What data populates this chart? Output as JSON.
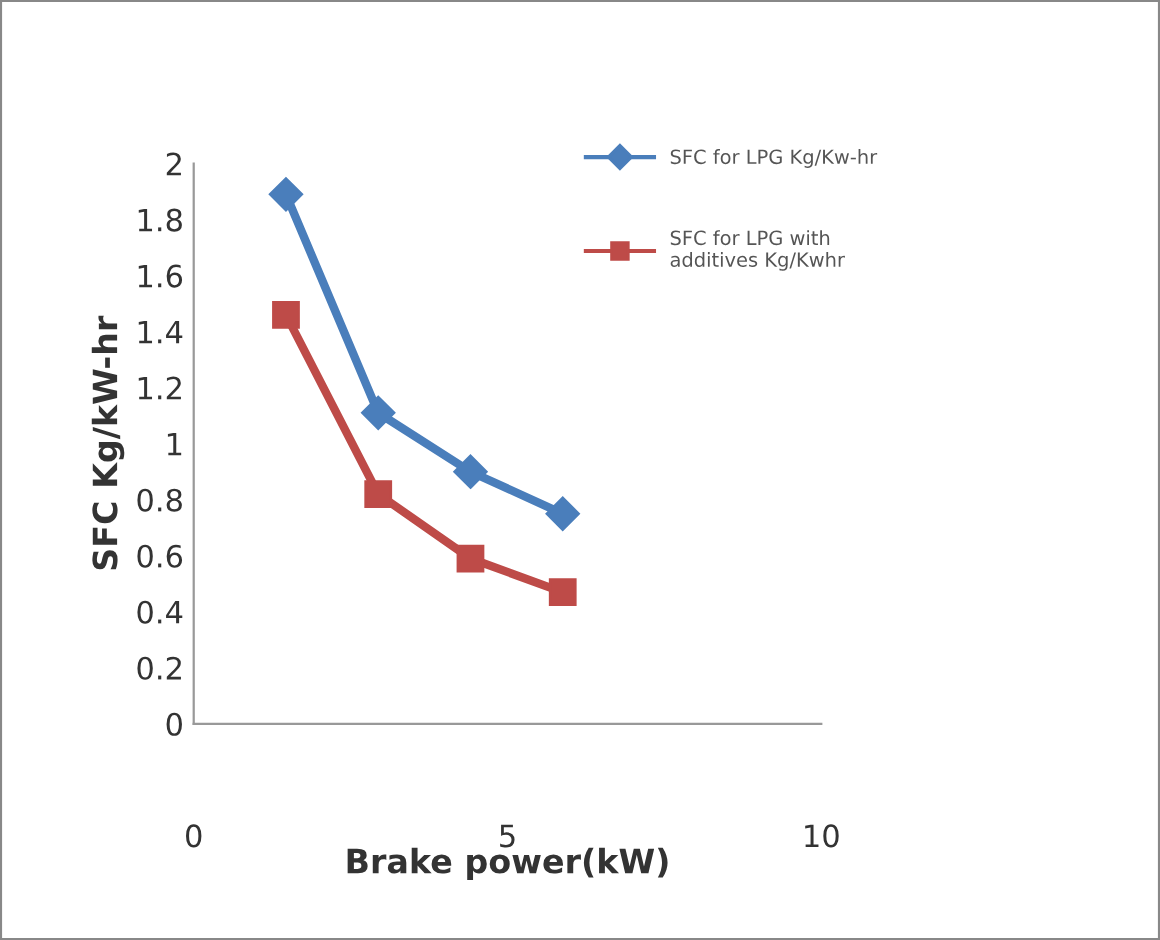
{
  "chart_data": {
    "type": "line",
    "xlabel": "Brake power(kW)",
    "ylabel": "SFC Kg/kW-hr",
    "x": [
      1.47,
      2.94,
      4.41,
      5.88
    ],
    "series": [
      {
        "name": "SFC for LPG Kg/Kw-hr",
        "color": "#4a7ebb",
        "marker": "diamond",
        "values": [
          1.89,
          1.11,
          0.9,
          0.75
        ]
      },
      {
        "name": "SFC for LPG with\nadditives Kg/Kwhr",
        "color": "#be4b48",
        "marker": "square",
        "values": [
          1.46,
          0.82,
          0.59,
          0.47
        ]
      }
    ],
    "xlim": [
      0,
      10
    ],
    "xticks": [
      0,
      5,
      10
    ],
    "ylim": [
      0,
      2
    ],
    "yticks": [
      0,
      0.2,
      0.4,
      0.6,
      0.8,
      1,
      1.2,
      1.4,
      1.6,
      1.8,
      2
    ],
    "grid": false,
    "legend": "right"
  }
}
